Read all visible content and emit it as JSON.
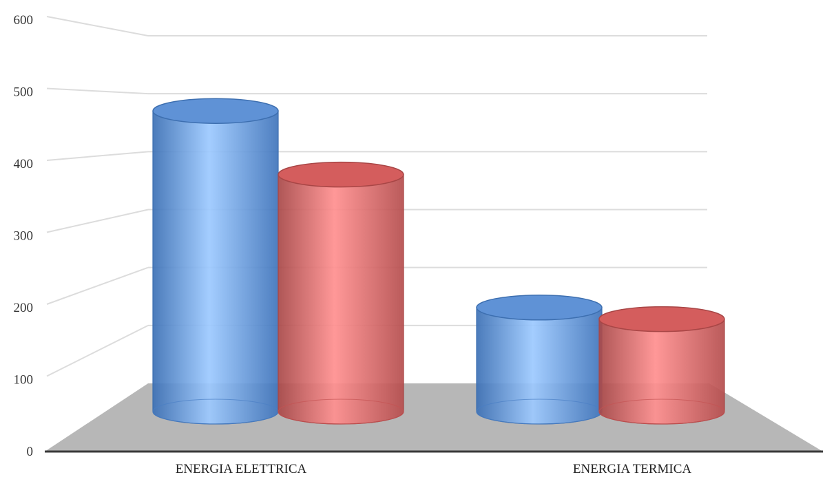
{
  "chart_data": {
    "type": "bar",
    "style": "3d-cylinder",
    "categories": [
      "ENERGIA ELETTRICA",
      "ENERGIA TERMICA"
    ],
    "series": [
      {
        "values": [
          520,
          180
        ],
        "color": "#5b9bd5"
      },
      {
        "values": [
          410,
          160
        ],
        "color": "#e06666"
      }
    ],
    "title": "",
    "xlabel": "",
    "ylabel": "",
    "ylim": [
      0,
      600
    ],
    "yticks": [
      0,
      100,
      200,
      300,
      400,
      500,
      600
    ],
    "grid": true,
    "floor_color": "#b7b7b7"
  }
}
